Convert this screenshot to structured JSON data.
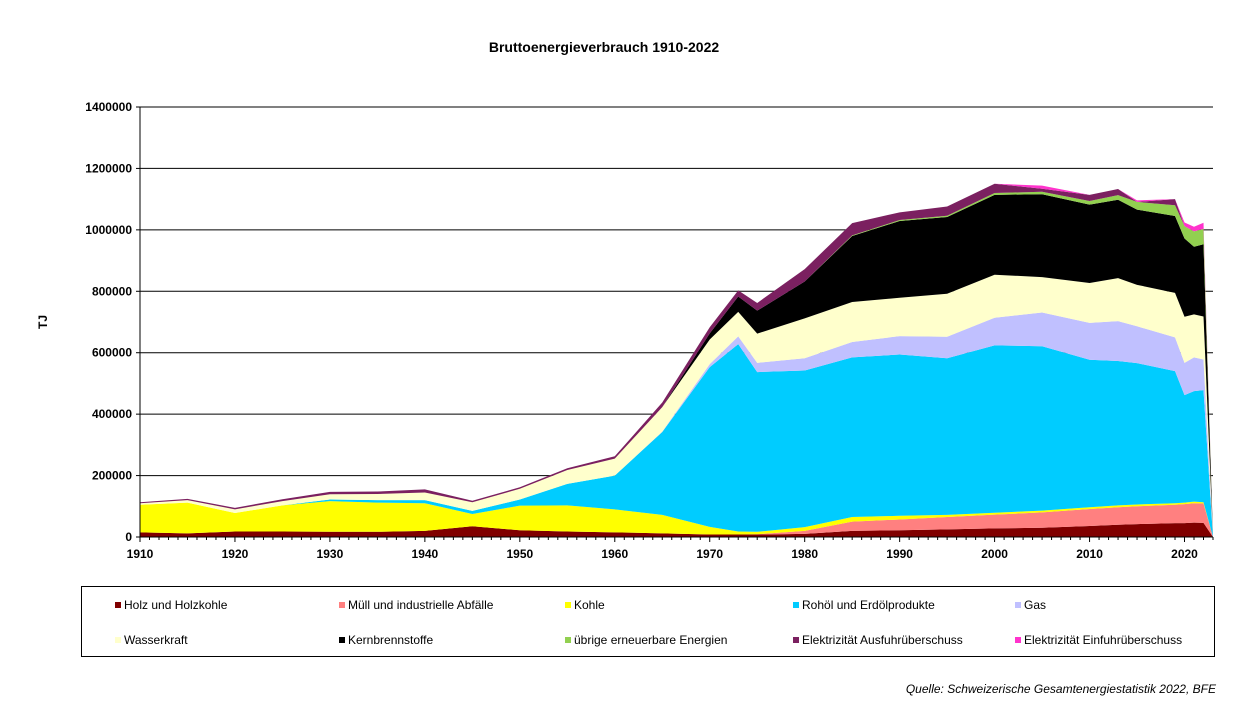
{
  "chart_data": {
    "type": "area",
    "stacked": true,
    "title": "Bruttoenergieverbrauch 1910-2022",
    "ylabel": "TJ",
    "xlabel": "",
    "xlim": [
      1910,
      2023
    ],
    "ylim": [
      0,
      1400000
    ],
    "x_ticks": [
      "1910",
      "1920",
      "1930",
      "1940",
      "1950",
      "1960",
      "1970",
      "1980",
      "1990",
      "2000",
      "2010",
      "2020"
    ],
    "y_ticks": [
      "0",
      "200000",
      "400000",
      "600000",
      "800000",
      "1000000",
      "1200000",
      "1400000"
    ],
    "grid": "horizontal",
    "legend_position": "bottom",
    "x": [
      1910,
      1915,
      1920,
      1925,
      1930,
      1935,
      1940,
      1945,
      1950,
      1955,
      1960,
      1965,
      1970,
      1973,
      1975,
      1980,
      1985,
      1990,
      1995,
      2000,
      2005,
      2010,
      2013,
      2015,
      2019,
      2020,
      2021,
      2022,
      2023
    ],
    "series": [
      {
        "name": "Holz und Holzkohle",
        "color": "#800000",
        "values": [
          15000,
          12000,
          18000,
          18000,
          17000,
          17000,
          20000,
          35000,
          22000,
          18000,
          15000,
          12000,
          8000,
          8000,
          8000,
          10000,
          20000,
          22000,
          25000,
          28000,
          30000,
          36000,
          40000,
          42000,
          45000,
          45000,
          47000,
          46000,
          0
        ]
      },
      {
        "name": "Müll und  industrielle Abfälle",
        "color": "#ff8080",
        "values": [
          0,
          0,
          0,
          0,
          0,
          0,
          0,
          0,
          0,
          0,
          0,
          0,
          0,
          0,
          1000,
          10000,
          30000,
          35000,
          40000,
          45000,
          50000,
          55000,
          57000,
          58000,
          60000,
          62000,
          63000,
          63000,
          0
        ]
      },
      {
        "name": "Kohle",
        "color": "#ffff00",
        "values": [
          90000,
          100000,
          60000,
          85000,
          100000,
          95000,
          90000,
          40000,
          80000,
          85000,
          75000,
          60000,
          25000,
          10000,
          8000,
          12000,
          15000,
          12000,
          7000,
          6000,
          6000,
          6000,
          6000,
          6000,
          5000,
          5000,
          5000,
          4000,
          0
        ]
      },
      {
        "name": "Rohöl und Erdölprodukte",
        "color": "#00ccff",
        "values": [
          0,
          0,
          0,
          0,
          5000,
          8000,
          10000,
          10000,
          20000,
          70000,
          110000,
          270000,
          520000,
          610000,
          520000,
          510000,
          520000,
          525000,
          510000,
          545000,
          535000,
          480000,
          470000,
          460000,
          430000,
          350000,
          360000,
          365000,
          0
        ]
      },
      {
        "name": "Gas",
        "color": "#c0c0ff",
        "values": [
          0,
          0,
          0,
          0,
          0,
          0,
          0,
          0,
          0,
          0,
          0,
          1000,
          10000,
          25000,
          30000,
          40000,
          50000,
          60000,
          70000,
          90000,
          110000,
          120000,
          130000,
          120000,
          110000,
          105000,
          110000,
          100000,
          0
        ]
      },
      {
        "name": "Wasserkraft",
        "color": "#ffffcc",
        "values": [
          5000,
          8000,
          12000,
          14000,
          17000,
          20000,
          25000,
          28000,
          35000,
          45000,
          55000,
          80000,
          80000,
          80000,
          95000,
          130000,
          130000,
          125000,
          140000,
          140000,
          115000,
          130000,
          140000,
          135000,
          145000,
          150000,
          140000,
          140000,
          0
        ]
      },
      {
        "name": "Kernbrennstoffe",
        "color": "#000000",
        "values": [
          0,
          0,
          0,
          0,
          0,
          0,
          0,
          0,
          0,
          0,
          0,
          0,
          20000,
          50000,
          75000,
          120000,
          215000,
          250000,
          250000,
          260000,
          270000,
          255000,
          255000,
          245000,
          250000,
          255000,
          220000,
          235000,
          0
        ]
      },
      {
        "name": "übrige erneuerbare Energien",
        "color": "#92d050",
        "values": [
          0,
          0,
          0,
          0,
          0,
          0,
          0,
          0,
          0,
          0,
          0,
          0,
          0,
          0,
          0,
          0,
          2000,
          3000,
          4000,
          6000,
          8000,
          12000,
          15000,
          25000,
          35000,
          40000,
          50000,
          50000,
          0
        ]
      },
      {
        "name": "Elektrizität Ausfuhrüberschuss",
        "color": "#7b2060",
        "values": [
          3000,
          4000,
          5000,
          6000,
          8000,
          8000,
          10000,
          5000,
          5000,
          6000,
          8000,
          15000,
          20000,
          20000,
          25000,
          40000,
          40000,
          25000,
          30000,
          30000,
          10000,
          20000,
          20000,
          0,
          20000,
          0,
          0,
          0,
          0
        ]
      },
      {
        "name": "Elektrizität Einfuhrüberschuss",
        "color": "#ff33cc",
        "values": [
          0,
          0,
          0,
          0,
          0,
          0,
          0,
          0,
          0,
          0,
          0,
          0,
          0,
          0,
          0,
          0,
          0,
          0,
          0,
          0,
          10000,
          0,
          0,
          5000,
          0,
          12000,
          15000,
          20000,
          0
        ]
      }
    ]
  },
  "source_note": "Quelle: Schweizerische Gesamtenergiestatistik 2022, BFE"
}
